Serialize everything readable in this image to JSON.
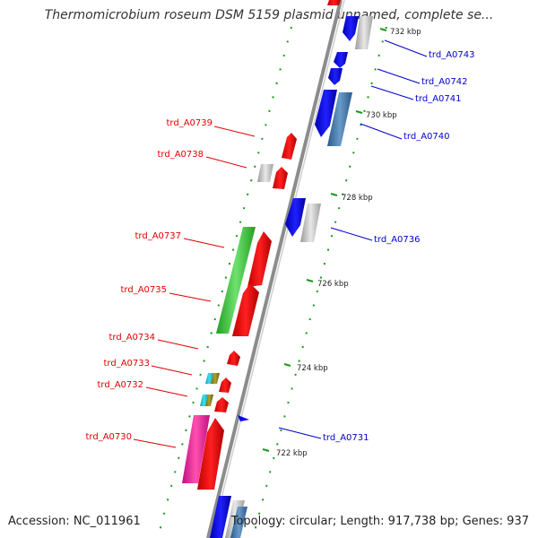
{
  "title": "Thermomicrobium roseum DSM 5159 plasmid unnamed, complete se...",
  "footer": {
    "accession": "Accession: NC_011961",
    "stats": "Topology: circular; Length: 917,738 bp; Genes: 937"
  },
  "colors": {
    "forward_label": "#e00000",
    "reverse_label": "#0000cc",
    "backbone": "#8c8c8c",
    "tick": "#1a9a1a"
  },
  "ticks": [
    "732 kbp",
    "730 kbp",
    "728 kbp",
    "726 kbp",
    "724 kbp",
    "722 kbp"
  ],
  "genes_forward": [
    {
      "label": "trd_A0739",
      "color": "#ff0000"
    },
    {
      "label": "trd_A0738",
      "color": "#ff0000"
    },
    {
      "label": "trd_A0737",
      "color": "#ff0000"
    },
    {
      "label": "trd_A0735",
      "color": "#ff0000"
    },
    {
      "label": "trd_A0734",
      "color": "#ff0000"
    },
    {
      "label": "trd_A0733",
      "color": "#ff0000"
    },
    {
      "label": "trd_A0732",
      "color": "#ff0000"
    },
    {
      "label": "trd_A0730",
      "color": "#ff0000"
    }
  ],
  "genes_reverse": [
    {
      "label": "trd_A0743",
      "color": "#0000ff"
    },
    {
      "label": "trd_A0742",
      "color": "#0000ff"
    },
    {
      "label": "trd_A0741",
      "color": "#0000ff"
    },
    {
      "label": "trd_A0740",
      "color": "#0000ff"
    },
    {
      "label": "trd_A0736",
      "color": "#0000ff"
    },
    {
      "label": "trd_A0731",
      "color": "#0000ff"
    }
  ]
}
